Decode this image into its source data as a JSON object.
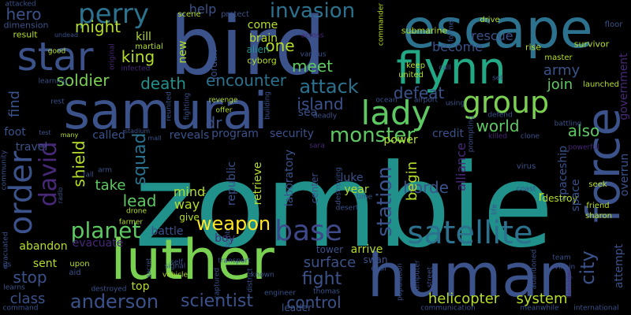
{
  "words": [
    {
      "text": "zombie",
      "color": "#21918c"
    },
    {
      "text": "bird",
      "color": "#3b528b"
    },
    {
      "text": "escape",
      "color": "#2c728e"
    },
    {
      "text": "samurai",
      "color": "#3b528b"
    },
    {
      "text": "human",
      "color": "#3b528b"
    },
    {
      "text": "luther",
      "color": "#7ad151"
    },
    {
      "text": "star",
      "color": "#3b528b"
    },
    {
      "text": "flynn",
      "color": "#22a884"
    },
    {
      "text": "force",
      "color": "#3b528b"
    },
    {
      "text": "group",
      "color": "#7ad151"
    },
    {
      "text": "lady",
      "color": "#5ec962"
    },
    {
      "text": "order",
      "color": "#3b528b"
    },
    {
      "text": "satellite",
      "color": "#2c728e"
    },
    {
      "text": "base",
      "color": "#3e4989"
    },
    {
      "text": "perry",
      "color": "#2c728e"
    },
    {
      "text": "invasion",
      "color": "#2c728e"
    },
    {
      "text": "attack",
      "color": "#2c728e"
    },
    {
      "text": "island",
      "color": "#3b528b"
    },
    {
      "text": "monster",
      "color": "#5ec962"
    },
    {
      "text": "david",
      "color": "#482878"
    },
    {
      "text": "planet",
      "color": "#5ec962"
    },
    {
      "text": "weapon",
      "color": "#fde725"
    },
    {
      "text": "anderson",
      "color": "#3b528b"
    },
    {
      "text": "scientist",
      "color": "#3b528b"
    },
    {
      "text": "control",
      "color": "#3b528b"
    },
    {
      "text": "helicopter",
      "color": "#b5de2b"
    },
    {
      "text": "system",
      "color": "#b5de2b"
    },
    {
      "text": "station",
      "color": "#3b528b"
    },
    {
      "text": "city",
      "color": "#3b528b"
    },
    {
      "text": "fight",
      "color": "#3b528b"
    },
    {
      "text": "surface",
      "color": "#3b528b"
    },
    {
      "text": "stop",
      "color": "#3b528b"
    },
    {
      "text": "class",
      "color": "#3b528b"
    },
    {
      "text": "hero",
      "color": "#3b528b"
    },
    {
      "text": "might",
      "color": "#b5de2b"
    },
    {
      "text": "king",
      "color": "#b5de2b"
    },
    {
      "text": "soldier",
      "color": "#7ad151"
    },
    {
      "text": "death",
      "color": "#21918c"
    },
    {
      "text": "encounter",
      "color": "#2c728e"
    },
    {
      "text": "meet",
      "color": "#5ec962"
    },
    {
      "text": "one",
      "color": "#b5de2b"
    },
    {
      "text": "dr",
      "color": "#3b528b"
    },
    {
      "text": "world",
      "color": "#5ec962"
    },
    {
      "text": "also",
      "color": "#5ec962"
    },
    {
      "text": "defeat",
      "color": "#3b528b"
    },
    {
      "text": "army",
      "color": "#3b528b"
    },
    {
      "text": "join",
      "color": "#5ec962"
    },
    {
      "text": "rescue",
      "color": "#3b528b"
    },
    {
      "text": "become",
      "color": "#3b528b"
    },
    {
      "text": "squad",
      "color": "#2c728e"
    },
    {
      "text": "lead",
      "color": "#5ec962"
    },
    {
      "text": "shield",
      "color": "#b5de2b"
    },
    {
      "text": "take",
      "color": "#5ec962"
    },
    {
      "text": "mind",
      "color": "#b5de2b"
    },
    {
      "text": "way",
      "color": "#b5de2b"
    },
    {
      "text": "alliance",
      "color": "#482878"
    },
    {
      "text": "horde",
      "color": "#3b528b"
    },
    {
      "text": "begin",
      "color": "#b5de2b"
    },
    {
      "text": "spaceship",
      "color": "#3b528b"
    },
    {
      "text": "destroy",
      "color": "#b5de2b"
    },
    {
      "text": "space",
      "color": "#3b528b"
    },
    {
      "text": "overrun",
      "color": "#3b528b"
    },
    {
      "text": "attempt",
      "color": "#3b528b"
    },
    {
      "text": "find",
      "color": "#3b528b"
    },
    {
      "text": "help",
      "color": "#3b528b"
    },
    {
      "text": "brain",
      "color": "#b5de2b"
    },
    {
      "text": "alien",
      "color": "#21918c"
    },
    {
      "text": "come",
      "color": "#b5de2b"
    },
    {
      "text": "new",
      "color": "#b5de2b"
    },
    {
      "text": "jordan",
      "color": "#3b528b"
    },
    {
      "text": "cyborg",
      "color": "#b5de2b"
    },
    {
      "text": "kill",
      "color": "#b5de2b"
    },
    {
      "text": "sea",
      "color": "#3b528b"
    },
    {
      "text": "security",
      "color": "#3b528b"
    },
    {
      "text": "program",
      "color": "#3b528b"
    },
    {
      "text": "reveals",
      "color": "#3b528b"
    },
    {
      "text": "called",
      "color": "#3b528b"
    },
    {
      "text": "credit",
      "color": "#3b528b"
    },
    {
      "text": "power",
      "color": "#b5de2b"
    },
    {
      "text": "luke",
      "color": "#3b528b"
    },
    {
      "text": "year",
      "color": "#b5de2b"
    },
    {
      "text": "retrieve",
      "color": "#b5de2b"
    },
    {
      "text": "laboratory",
      "color": "#3b528b"
    },
    {
      "text": "republic",
      "color": "#3b528b"
    },
    {
      "text": "center",
      "color": "#3b528b"
    },
    {
      "text": "arrive",
      "color": "#b5de2b"
    },
    {
      "text": "swan",
      "color": "#3b528b"
    },
    {
      "text": "tower",
      "color": "#3b528b"
    },
    {
      "text": "battle",
      "color": "#3b528b"
    },
    {
      "text": "abandon",
      "color": "#b5de2b"
    },
    {
      "text": "evacuate",
      "color": "#482878"
    },
    {
      "text": "boy",
      "color": "#482878"
    },
    {
      "text": "top",
      "color": "#b5de2b"
    },
    {
      "text": "sent",
      "color": "#b5de2b"
    },
    {
      "text": "travel",
      "color": "#3b528b"
    },
    {
      "text": "foot",
      "color": "#3b528b"
    },
    {
      "text": "give",
      "color": "#b5de2b"
    },
    {
      "text": "leader",
      "color": "#3b528b"
    },
    {
      "text": "government",
      "color": "#482878"
    },
    {
      "text": "launched",
      "color": "#b5de2b"
    },
    {
      "text": "master",
      "color": "#b5de2b"
    },
    {
      "text": "survivor",
      "color": "#b5de2b"
    },
    {
      "text": "floor",
      "color": "#3b528b"
    },
    {
      "text": "drive",
      "color": "#b5de2b"
    },
    {
      "text": "rise",
      "color": "#b5de2b"
    },
    {
      "text": "submarine",
      "color": "#b5de2b"
    },
    {
      "text": "keep",
      "color": "#b5de2b"
    },
    {
      "text": "united",
      "color": "#b5de2b"
    },
    {
      "text": "scene",
      "color": "#b5de2b"
    },
    {
      "text": "protect",
      "color": "#3b528b"
    },
    {
      "text": "commander",
      "color": "#b5de2b"
    },
    {
      "text": "former",
      "color": "#3b528b"
    },
    {
      "text": "dimension",
      "color": "#3b528b"
    },
    {
      "text": "result",
      "color": "#b5de2b"
    },
    {
      "text": "attacked",
      "color": "#3b528b"
    },
    {
      "text": "undead",
      "color": "#3b528b"
    },
    {
      "text": "martial",
      "color": "#b5de2b"
    },
    {
      "text": "infected",
      "color": "#482878"
    },
    {
      "text": "original",
      "color": "#482878"
    },
    {
      "text": "good",
      "color": "#b5de2b"
    },
    {
      "text": "learning",
      "color": "#3b528b"
    },
    {
      "text": "rest",
      "color": "#3b528b"
    },
    {
      "text": "reunited",
      "color": "#3b528b"
    },
    {
      "text": "fighting",
      "color": "#3b528b"
    },
    {
      "text": "revenge",
      "color": "#b5de2b"
    },
    {
      "text": "offer",
      "color": "#b5de2b"
    },
    {
      "text": "building",
      "color": "#3b528b"
    },
    {
      "text": "stadium",
      "color": "#3b528b"
    },
    {
      "text": "mall",
      "color": "#3b528b"
    },
    {
      "text": "many",
      "color": "#b5de2b"
    },
    {
      "text": "test",
      "color": "#3b528b"
    },
    {
      "text": "deadly",
      "color": "#3b528b"
    },
    {
      "text": "ocean",
      "color": "#3b528b"
    },
    {
      "text": "airport",
      "color": "#3b528b"
    },
    {
      "text": "using",
      "color": "#3b528b"
    },
    {
      "text": "defend",
      "color": "#3b528b"
    },
    {
      "text": "killed",
      "color": "#482878"
    },
    {
      "text": "clone",
      "color": "#3b528b"
    },
    {
      "text": "battling",
      "color": "#3b528b"
    },
    {
      "text": "powerful",
      "color": "#482878"
    },
    {
      "text": "prompting",
      "color": "#3b528b"
    },
    {
      "text": "virus",
      "color": "#3b528b"
    },
    {
      "text": "seek",
      "color": "#b5de2b"
    },
    {
      "text": "friend",
      "color": "#b5de2b"
    },
    {
      "text": "sharon",
      "color": "#b5de2b"
    },
    {
      "text": "coast",
      "color": "#3b528b"
    },
    {
      "text": "drone",
      "color": "#b5de2b"
    },
    {
      "text": "farmer",
      "color": "#b5de2b"
    },
    {
      "text": "arm",
      "color": "#3b528b"
    },
    {
      "text": "radio",
      "color": "#3b528b"
    },
    {
      "text": "fall",
      "color": "#3b528b"
    },
    {
      "text": "community",
      "color": "#3b528b"
    },
    {
      "text": "evacuated",
      "color": "#3b528b"
    },
    {
      "text": "learns",
      "color": "#3b528b"
    },
    {
      "text": "command",
      "color": "#3b528b"
    },
    {
      "text": "us",
      "color": "#3b528b"
    },
    {
      "text": "upon",
      "color": "#b5de2b"
    },
    {
      "text": "aid",
      "color": "#3b528b"
    },
    {
      "text": "self",
      "color": "#3b528b"
    },
    {
      "text": "signal",
      "color": "#3b528b"
    },
    {
      "text": "vehicle",
      "color": "#b5de2b"
    },
    {
      "text": "secret",
      "color": "#3b528b"
    },
    {
      "text": "destroyed",
      "color": "#3b528b"
    },
    {
      "text": "captured",
      "color": "#3b528b"
    },
    {
      "text": "transport",
      "color": "#3b528b"
    },
    {
      "text": "district",
      "color": "#3b528b"
    },
    {
      "text": "known",
      "color": "#3b528b"
    },
    {
      "text": "engineer",
      "color": "#3b528b"
    },
    {
      "text": "thomas",
      "color": "#3b528b"
    },
    {
      "text": "bomb",
      "color": "#3b528b"
    },
    {
      "text": "desert",
      "color": "#3b528b"
    },
    {
      "text": "destroying",
      "color": "#3b528b"
    },
    {
      "text": "time",
      "color": "#3b528b"
    },
    {
      "text": "sara",
      "color": "#482878"
    },
    {
      "text": "deal",
      "color": "#3b528b"
    },
    {
      "text": "population",
      "color": "#3b528b"
    },
    {
      "text": "computer",
      "color": "#3b528b"
    },
    {
      "text": "street",
      "color": "#3b528b"
    },
    {
      "text": "communication",
      "color": "#3b528b"
    },
    {
      "text": "abandoned",
      "color": "#3b528b"
    },
    {
      "text": "team",
      "color": "#3b528b"
    },
    {
      "text": "villain",
      "color": "#3b528b"
    },
    {
      "text": "teenager",
      "color": "#482878"
    },
    {
      "text": "meanwhile",
      "color": "#3b528b"
    },
    {
      "text": "international",
      "color": "#3b528b"
    },
    {
      "text": "life",
      "color": "#3b528b"
    },
    {
      "text": "set",
      "color": "#3b528b"
    },
    {
      "text": "call",
      "color": "#3b528b"
    },
    {
      "text": "across",
      "color": "#482878"
    },
    {
      "text": "various",
      "color": "#3b528b"
    },
    {
      "text": "r",
      "color": "#b5de2b"
    },
    {
      "text": "c",
      "color": "#b5de2b"
    }
  ]
}
